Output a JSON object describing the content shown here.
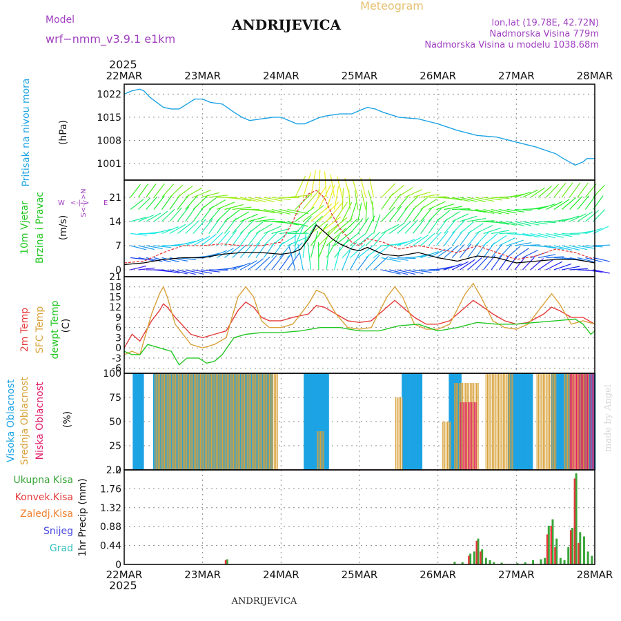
{
  "header": {
    "title": "ANDRIJEVICA",
    "subtitle": "Meteogram",
    "model_label": "Model",
    "model_name": "wrf−nmm_v3.9.1 e1km",
    "lonlat": "lon,lat (19.78E, 42.72N)",
    "elevation": "Nadmorska Visina 779m",
    "model_elevation": "Nadmorska Visina u modelu 1038.68m",
    "footer_title": "ANDRIJEVICA",
    "credit": "made by Angel",
    "year": "2025"
  },
  "time_axis": {
    "labels": [
      "22MAR",
      "23MAR",
      "24MAR",
      "25MAR",
      "26MAR",
      "27MAR",
      "28MAR"
    ],
    "day_values": [
      0,
      1,
      2,
      3,
      4,
      5,
      6
    ]
  },
  "colors": {
    "pressure": "#1ca3e4",
    "wind_speed": "#000000",
    "wind_gust": "#e53a3a",
    "temp2m": "#e53a3a",
    "sfc_temp": "#d9a23a",
    "dewpoint": "#22c722",
    "high_cloud": "#1ca3e4",
    "mid_cloud": "#d9a23a",
    "low_cloud": "#e0206a",
    "total_precip": "#39a639",
    "conv_precip": "#e53a3a",
    "frozen_precip": "#f08030",
    "snow": "#4848e0",
    "graupel": "#3ac0c0",
    "model_label": "#a040c0",
    "grid": "#888888"
  },
  "chart_data": [
    {
      "type": "line",
      "name": "pressure",
      "ylabel_main": "Pritisak na nivou mora",
      "ylabel_unit": "(hPa)",
      "yticks": [
        1001,
        1008,
        1015,
        1022
      ],
      "ylim": [
        996,
        1025
      ],
      "x": [
        0,
        0.1,
        0.2,
        0.25,
        0.33,
        0.5,
        0.6,
        0.7,
        0.8,
        0.9,
        1.0,
        1.1,
        1.25,
        1.4,
        1.5,
        1.6,
        1.75,
        1.9,
        2.0,
        2.1,
        2.2,
        2.3,
        2.4,
        2.5,
        2.6,
        2.75,
        2.9,
        3.0,
        3.1,
        3.2,
        3.3,
        3.5,
        3.75,
        4.0,
        4.25,
        4.5,
        4.75,
        5.0,
        5.25,
        5.5,
        5.6,
        5.75,
        5.85,
        5.9,
        6.0
      ],
      "y": [
        1022,
        1023,
        1023.5,
        1023,
        1021,
        1018,
        1017.5,
        1017.5,
        1019,
        1020.5,
        1020.5,
        1019.5,
        1019,
        1016.5,
        1015,
        1014,
        1014.5,
        1015,
        1015,
        1014,
        1013,
        1013,
        1014,
        1015,
        1015.5,
        1016,
        1016,
        1017,
        1018,
        1017.5,
        1016.5,
        1015,
        1014.5,
        1013,
        1011,
        1009.5,
        1009,
        1007.5,
        1006,
        1004,
        1002.5,
        1000.5,
        1001.5,
        1002.5,
        1002.5
      ]
    },
    {
      "type": "line",
      "name": "wind",
      "ylabel_main": "10m Vjetar",
      "ylabel_sub": "Brzina i Pravac",
      "ylabel_unit": "(m/s)",
      "direction_legend": "W  <-|->  E   N ^  S v",
      "yticks": [
        0,
        7,
        14,
        21
      ],
      "ylim": [
        -2,
        26
      ],
      "series": [
        {
          "name": "speed",
          "x": [
            0,
            0.25,
            0.5,
            0.75,
            1.0,
            1.25,
            1.5,
            1.75,
            2.0,
            2.15,
            2.25,
            2.35,
            2.45,
            2.55,
            2.65,
            2.75,
            2.9,
            3.0,
            3.1,
            3.3,
            3.5,
            3.75,
            4.0,
            4.25,
            4.5,
            4.75,
            5.0,
            5.25,
            5.5,
            5.75,
            6.0
          ],
          "y": [
            1.5,
            2,
            3,
            3.5,
            3.5,
            4.5,
            5,
            5,
            4.5,
            5,
            6,
            9,
            13,
            11,
            9,
            7.5,
            6,
            5.5,
            6.5,
            4.5,
            4,
            5,
            3.5,
            2.5,
            4,
            3.5,
            2,
            2.5,
            3,
            3,
            2
          ]
        },
        {
          "name": "gust",
          "x": [
            0,
            0.25,
            0.5,
            0.75,
            1.0,
            1.25,
            1.5,
            1.75,
            2.0,
            2.15,
            2.25,
            2.35,
            2.45,
            2.55,
            2.65,
            2.75,
            2.9,
            3.0,
            3.1,
            3.3,
            3.5,
            3.75,
            4.0,
            4.25,
            4.5,
            4.75,
            5.0,
            5.25,
            5.5,
            5.75,
            6.0
          ],
          "y": [
            2,
            2.5,
            5,
            7,
            7,
            7.5,
            7,
            7,
            8,
            14,
            19,
            22,
            23,
            21,
            16,
            12,
            8,
            7,
            9,
            8,
            6,
            7,
            6,
            5,
            7,
            5,
            3,
            4,
            6,
            5,
            3
          ]
        }
      ]
    },
    {
      "type": "line",
      "name": "temperature",
      "ylabel_main": "2m Temp",
      "ylabel_sub": "SFC Temp",
      "ylabel_sub2": "dewpt Temp",
      "ylabel_unit": "(C)",
      "yticks": [
        -6,
        -3,
        0,
        3,
        6,
        9,
        12,
        15,
        18,
        21
      ],
      "ylim": [
        -7.5,
        21
      ],
      "series": [
        {
          "name": "temp2m",
          "x": [
            0,
            0.1,
            0.2,
            0.35,
            0.45,
            0.5,
            0.55,
            0.65,
            0.85,
            1.0,
            1.15,
            1.3,
            1.45,
            1.55,
            1.65,
            1.75,
            1.85,
            2.0,
            2.15,
            2.35,
            2.45,
            2.55,
            2.7,
            2.85,
            3.0,
            3.15,
            3.35,
            3.45,
            3.55,
            3.7,
            3.85,
            4.0,
            4.15,
            4.35,
            4.45,
            4.55,
            4.7,
            4.85,
            5.0,
            5.15,
            5.35,
            5.45,
            5.55,
            5.7,
            5.85,
            6.0
          ],
          "y": [
            0,
            4,
            2,
            8,
            11,
            13,
            12,
            9,
            4,
            3,
            4,
            5,
            11,
            13.5,
            12,
            9,
            8,
            8,
            9,
            10,
            12.5,
            12,
            10,
            8,
            7.5,
            8,
            12,
            14,
            12,
            9,
            7,
            7,
            8,
            12,
            14,
            12.5,
            10,
            8,
            7,
            7.5,
            10,
            12,
            11,
            9,
            9,
            7
          ]
        },
        {
          "name": "sfc_temp",
          "x": [
            0,
            0.1,
            0.2,
            0.35,
            0.45,
            0.5,
            0.55,
            0.65,
            0.85,
            1.0,
            1.15,
            1.3,
            1.45,
            1.55,
            1.65,
            1.75,
            1.85,
            2.0,
            2.15,
            2.35,
            2.45,
            2.55,
            2.7,
            2.85,
            3.0,
            3.15,
            3.35,
            3.45,
            3.55,
            3.7,
            3.85,
            4.0,
            4.15,
            4.35,
            4.45,
            4.55,
            4.7,
            4.85,
            5.0,
            5.15,
            5.35,
            5.45,
            5.55,
            5.7,
            5.85,
            6.0
          ],
          "y": [
            -2,
            -1,
            -2,
            10,
            16,
            18,
            15,
            7,
            1,
            0,
            1,
            3,
            15,
            18,
            15,
            8,
            6,
            6,
            7,
            13,
            17,
            16,
            10,
            6,
            5.5,
            6,
            15,
            18,
            15,
            7,
            5.5,
            5.5,
            7,
            16,
            19,
            15,
            8,
            6,
            5.5,
            7,
            13,
            16,
            13,
            7,
            8,
            7
          ]
        },
        {
          "name": "dewpoint",
          "x": [
            0,
            0.1,
            0.2,
            0.3,
            0.45,
            0.6,
            0.7,
            0.8,
            0.95,
            1.05,
            1.15,
            1.25,
            1.4,
            1.55,
            1.75,
            2.0,
            2.25,
            2.5,
            2.75,
            3.0,
            3.25,
            3.5,
            3.75,
            4.0,
            4.25,
            4.5,
            4.75,
            5.0,
            5.25,
            5.5,
            5.75,
            5.85,
            5.95,
            6.0
          ],
          "y": [
            -1,
            -2,
            -2,
            1,
            0,
            -1,
            -5,
            -3,
            -3,
            -4.5,
            -4,
            -2,
            3,
            4,
            4.5,
            4.5,
            5,
            6,
            6,
            5,
            5,
            6.5,
            7,
            5,
            6,
            7.5,
            7,
            7,
            7.5,
            8,
            8.5,
            7,
            4,
            5
          ]
        }
      ]
    },
    {
      "type": "bar",
      "name": "cloud",
      "ylabel_main": "Visoka Oblacnost",
      "ylabel_sub": "Srednja Oblacnost",
      "ylabel_sub2": "Niska Oblacnost",
      "ylabel_unit": "(%)",
      "yticks": [
        0,
        25,
        50,
        75,
        100
      ],
      "ylim": [
        0,
        100
      ],
      "high_runs": [
        [
          0.12,
          0.25,
          100
        ],
        [
          0.38,
          1.9,
          100
        ],
        [
          2.3,
          2.6,
          100
        ],
        [
          3.55,
          3.8,
          100
        ],
        [
          4.15,
          4.3,
          100
        ],
        [
          4.9,
          5.2,
          100
        ],
        [
          5.45,
          5.7,
          100
        ],
        [
          5.8,
          6.0,
          100
        ]
      ],
      "mid_runs": [
        [
          0.38,
          1.95,
          100
        ],
        [
          2.45,
          2.55,
          40
        ],
        [
          3.45,
          3.55,
          75
        ],
        [
          4.05,
          4.15,
          50
        ],
        [
          4.2,
          4.5,
          90
        ],
        [
          4.6,
          4.95,
          100
        ],
        [
          5.25,
          5.5,
          100
        ],
        [
          5.6,
          5.9,
          100
        ]
      ],
      "low_runs": [
        [
          4.3,
          4.5,
          70
        ],
        [
          5.7,
          6.0,
          100
        ]
      ]
    },
    {
      "type": "bar",
      "name": "precip",
      "ylabel_main": "Ukupna Kisa",
      "ylabel_sub": "Konvek.Kisa",
      "ylabel_sub2": "Zaledj.Kisa",
      "ylabel_sub3": "Snijeg",
      "ylabel_sub4": "Grad",
      "ylabel_unit": "1hr Precip (mm)",
      "yticks": [
        0,
        0.44,
        0.88,
        1.32,
        1.76,
        2.2
      ],
      "ylim": [
        0,
        2.2
      ],
      "series": [
        {
          "name": "total",
          "x": [
            1.3,
            4.2,
            4.3,
            4.4,
            4.45,
            4.5,
            4.55,
            4.6,
            4.65,
            4.7,
            4.8,
            5.0,
            5.1,
            5.2,
            5.3,
            5.35,
            5.4,
            5.45,
            5.5,
            5.55,
            5.6,
            5.65,
            5.7,
            5.75,
            5.8,
            5.85,
            5.9,
            5.95
          ],
          "y": [
            0.12,
            0.06,
            0.05,
            0.25,
            0.3,
            0.6,
            0.35,
            0.15,
            0.1,
            0.05,
            0.04,
            0.03,
            0.05,
            0.1,
            0.12,
            0.15,
            0.9,
            1.05,
            0.6,
            0.15,
            0.1,
            0.4,
            0.85,
            2.12,
            0.75,
            0.65,
            0.3,
            0.2
          ]
        },
        {
          "name": "convective",
          "x": [
            1.3,
            4.4,
            4.5,
            4.55,
            5.4,
            5.45,
            5.5,
            5.7,
            5.75,
            5.8
          ],
          "y": [
            0.1,
            0.2,
            0.55,
            0.3,
            0.7,
            0.9,
            0.4,
            0.8,
            2.0,
            0.5
          ]
        }
      ]
    }
  ]
}
